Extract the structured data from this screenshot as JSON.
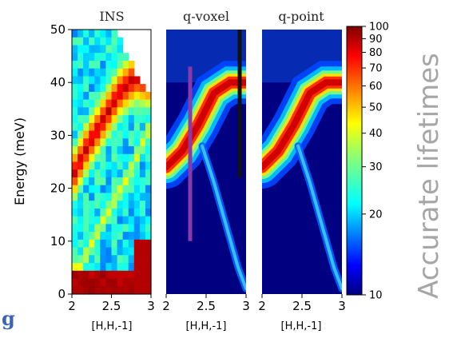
{
  "chart_data": [
    {
      "type": "heatmap",
      "title": "INS",
      "xlabel": "[H,H,-1]",
      "ylabel": "Energy (meV)",
      "xlim": [
        2,
        3
      ],
      "ylim": [
        0,
        50
      ],
      "x_ticks": [
        "2",
        "2.5",
        "3"
      ],
      "y_ticks": [
        "0",
        "10",
        "20",
        "30",
        "40",
        "50"
      ],
      "dispersion_branches": [
        {
          "name": "",
          "x": [
            2.0,
            2.2,
            2.4,
            2.6,
            2.8,
            3.0
          ],
          "y": [
            22,
            28,
            33,
            38,
            41,
            40
          ]
        },
        {
          "name": "",
          "x": [
            2.1,
            2.4,
            2.7,
            3.0
          ],
          "y": [
            5,
            14,
            22,
            32
          ]
        }
      ]
    },
    {
      "type": "heatmap",
      "title": "q-voxel",
      "xlabel": "[H,H,-1]",
      "xlim": [
        2,
        3
      ],
      "ylim": [
        0,
        50
      ],
      "x_ticks": [
        "2",
        "2.5",
        "3"
      ],
      "dispersion_branches": [
        {
          "name": "",
          "x": [
            2.0,
            2.2,
            2.4,
            2.6,
            2.8,
            3.0
          ],
          "y": [
            24,
            27,
            32,
            38,
            40,
            40
          ]
        },
        {
          "name": "",
          "x": [
            2.45,
            2.6,
            2.75,
            2.9,
            3.0
          ],
          "y": [
            28,
            21,
            13,
            5,
            1
          ]
        }
      ],
      "vertical_lines": [
        {
          "x": 2.3,
          "ymin": 10,
          "ymax": 43,
          "color": "#8a3aa8"
        },
        {
          "x": 2.92,
          "ymin": 22,
          "ymax": 50,
          "color": "#111111"
        }
      ]
    },
    {
      "type": "heatmap",
      "title": "q-point",
      "xlabel": "[H,H,-1]",
      "xlim": [
        2,
        3
      ],
      "ylim": [
        0,
        50
      ],
      "x_ticks": [
        "2",
        "2.5",
        "3"
      ],
      "dispersion_branches": [
        {
          "name": "",
          "x": [
            2.0,
            2.2,
            2.4,
            2.6,
            2.8,
            3.0
          ],
          "y": [
            24,
            27,
            32,
            38,
            40,
            40
          ]
        },
        {
          "name": "",
          "x": [
            2.45,
            2.6,
            2.75,
            2.9,
            3.0
          ],
          "y": [
            28,
            21,
            13,
            5,
            1
          ]
        }
      ]
    }
  ],
  "colorbar": {
    "scale": "log",
    "min": 10,
    "max": 100,
    "ticks": [
      "100",
      "90",
      "80",
      "70",
      "60",
      "50",
      "40",
      "30",
      "20",
      "10"
    ],
    "tick_values": [
      100,
      90,
      80,
      70,
      60,
      50,
      40,
      30,
      20,
      10
    ]
  },
  "side_label": "Accurate lifetimes",
  "edge_glyph": "g",
  "colors": {
    "side_label": "#a6a6a6",
    "edge_glyph": "#3a64b4"
  }
}
